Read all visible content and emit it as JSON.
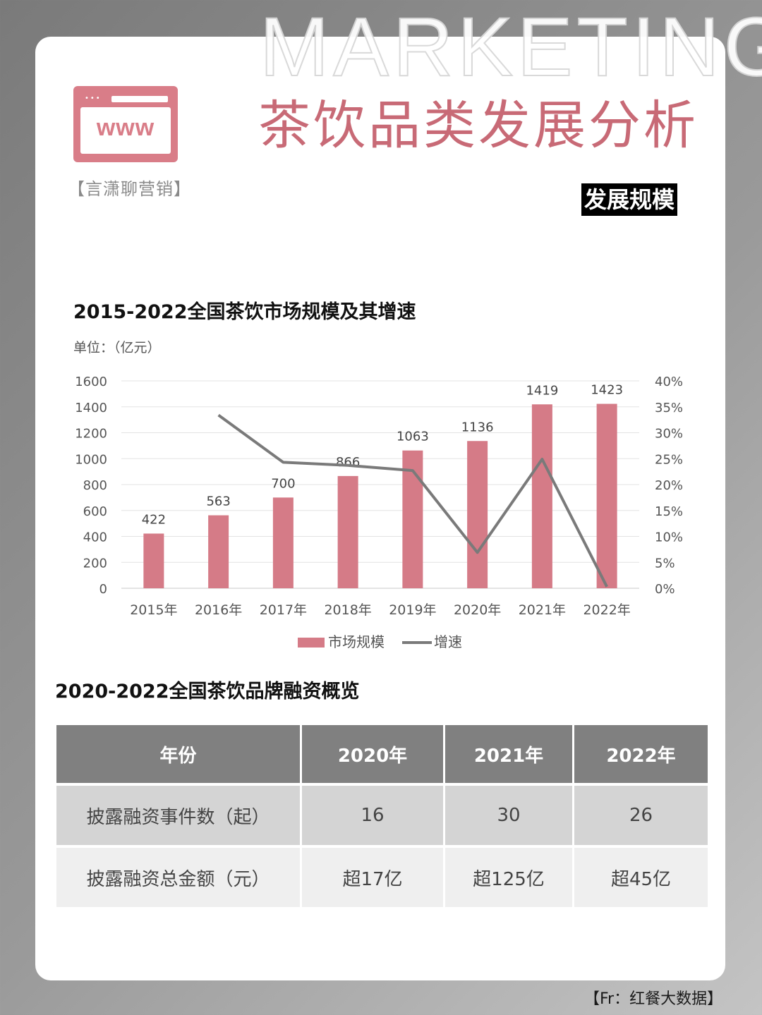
{
  "watermark": "MARKETING",
  "logo": {
    "text": "www",
    "dots": "•••"
  },
  "brand": "【言潇聊营销】",
  "title": "茶饮品类发展分析",
  "section_label": "发展规模",
  "chart_title": "2015-2022全国茶饮市场规模及其增速",
  "chart_unit": "单位：（亿元）",
  "colors": {
    "bar": "#d57b87",
    "line": "#7a7a7a",
    "title": "#c86a76",
    "header_bg": "#808080"
  },
  "chart_data": {
    "type": "bar",
    "categories": [
      "2015年",
      "2016年",
      "2017年",
      "2018年",
      "2019年",
      "2020年",
      "2021年",
      "2022年"
    ],
    "series": [
      {
        "name": "市场规模",
        "type": "bar",
        "axis": "left",
        "values": [
          422,
          563,
          700,
          866,
          1063,
          1136,
          1419,
          1423
        ],
        "data_labels": [
          "422",
          "563",
          "700",
          "866",
          "1063",
          "1136",
          "1419",
          "1423"
        ]
      },
      {
        "name": "增速",
        "type": "line",
        "axis": "right",
        "values": [
          null,
          33.4,
          24.3,
          23.7,
          22.7,
          6.9,
          24.9,
          0.3
        ]
      }
    ],
    "ylim": [
      0,
      1600
    ],
    "yticks": [
      "0",
      "200",
      "400",
      "600",
      "800",
      "1000",
      "1200",
      "1400",
      "1600"
    ],
    "y2lim": [
      0,
      40
    ],
    "y2ticks": [
      "0%",
      "5%",
      "10%",
      "15%",
      "20%",
      "25%",
      "30%",
      "35%",
      "40%"
    ],
    "grid": true,
    "legend_position": "bottom"
  },
  "table": {
    "title": "2020-2022全国茶饮品牌融资概览",
    "headers": [
      "年份",
      "2020年",
      "2021年",
      "2022年"
    ],
    "rows": [
      [
        "披露融资事件数（起）",
        "16",
        "30",
        "26"
      ],
      [
        "披露融资总金额（元）",
        "超17亿",
        "超125亿",
        "超45亿"
      ]
    ]
  },
  "source": "【Fr：红餐大数据】"
}
